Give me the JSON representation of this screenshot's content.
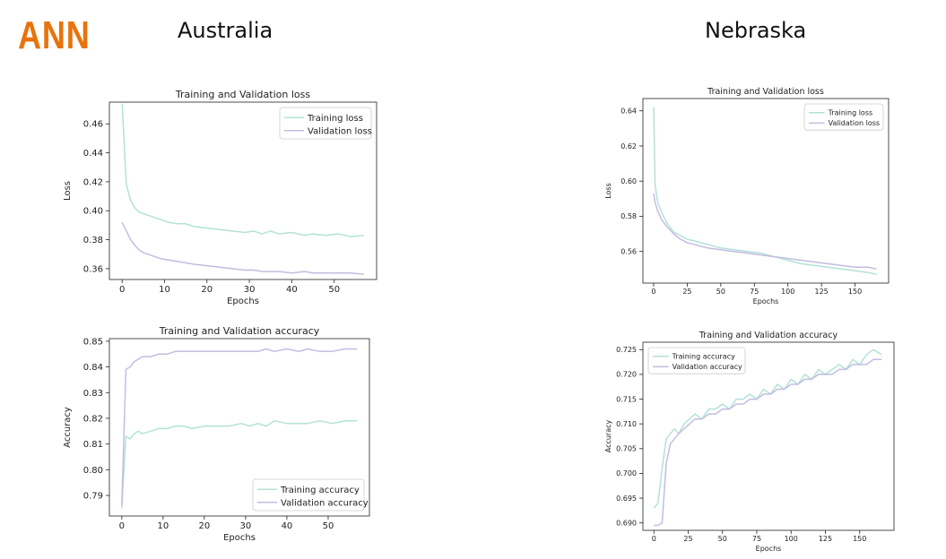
{
  "header": {
    "logo": "ANN",
    "left_title": "Australia",
    "right_title": "Nebraska"
  },
  "colors": {
    "logo": "#e8730c",
    "training": "#b3e2d8",
    "validation": "#c3bde0"
  },
  "chart_data": [
    {
      "id": "aus_loss",
      "type": "line",
      "title": "Training and Validation loss",
      "xlabel": "Epochs",
      "ylabel": "Loss",
      "xlim": [
        -3,
        60
      ],
      "ylim": [
        0.3525,
        0.475
      ],
      "xticks": [
        0,
        10,
        20,
        30,
        40,
        50
      ],
      "yticks": [
        0.36,
        0.38,
        0.4,
        0.42,
        0.44,
        0.46
      ],
      "ytick_decimals": 2,
      "legend": "top-right",
      "series": [
        {
          "name": "Training loss",
          "color": "#b3e2d8",
          "x": [
            0,
            1,
            2,
            3,
            4,
            5,
            7,
            9,
            11,
            13,
            15,
            17,
            20,
            23,
            26,
            29,
            31,
            33,
            35,
            37,
            40,
            43,
            45,
            48,
            51,
            54,
            57
          ],
          "y": [
            0.474,
            0.418,
            0.407,
            0.402,
            0.399,
            0.398,
            0.396,
            0.394,
            0.392,
            0.391,
            0.391,
            0.389,
            0.388,
            0.387,
            0.386,
            0.385,
            0.386,
            0.384,
            0.386,
            0.384,
            0.385,
            0.383,
            0.384,
            0.383,
            0.384,
            0.382,
            0.383
          ]
        },
        {
          "name": "Validation loss",
          "color": "#c3bde0",
          "x": [
            0,
            1,
            2,
            3,
            4,
            5,
            7,
            9,
            11,
            13,
            15,
            17,
            20,
            23,
            26,
            29,
            31,
            33,
            35,
            37,
            40,
            43,
            45,
            48,
            51,
            54,
            57
          ],
          "y": [
            0.392,
            0.386,
            0.38,
            0.376,
            0.373,
            0.371,
            0.369,
            0.367,
            0.366,
            0.365,
            0.364,
            0.363,
            0.362,
            0.361,
            0.36,
            0.359,
            0.359,
            0.358,
            0.358,
            0.358,
            0.357,
            0.358,
            0.357,
            0.357,
            0.357,
            0.357,
            0.356
          ]
        }
      ]
    },
    {
      "id": "aus_acc",
      "type": "line",
      "title": "Training and Validation accuracy",
      "xlabel": "Epochs",
      "ylabel": "Accuracy",
      "xlim": [
        -3,
        60
      ],
      "ylim": [
        0.782,
        0.851
      ],
      "xticks": [
        0,
        10,
        20,
        30,
        40,
        50
      ],
      "yticks": [
        0.79,
        0.8,
        0.81,
        0.82,
        0.83,
        0.84,
        0.85
      ],
      "ytick_decimals": 2,
      "legend": "bottom-right",
      "series": [
        {
          "name": "Training accuracy",
          "color": "#b3e2d8",
          "x": [
            0,
            1,
            2,
            3,
            4,
            5,
            7,
            9,
            11,
            13,
            15,
            17,
            20,
            23,
            26,
            29,
            31,
            33,
            35,
            37,
            40,
            43,
            45,
            48,
            51,
            54,
            57
          ],
          "y": [
            0.785,
            0.813,
            0.812,
            0.814,
            0.815,
            0.814,
            0.815,
            0.816,
            0.816,
            0.817,
            0.817,
            0.816,
            0.817,
            0.817,
            0.817,
            0.818,
            0.817,
            0.818,
            0.817,
            0.819,
            0.818,
            0.818,
            0.818,
            0.819,
            0.818,
            0.819,
            0.819
          ]
        },
        {
          "name": "Validation accuracy",
          "color": "#c3bde0",
          "x": [
            0,
            1,
            2,
            3,
            4,
            5,
            7,
            9,
            11,
            13,
            15,
            17,
            20,
            23,
            26,
            29,
            31,
            33,
            35,
            37,
            40,
            43,
            45,
            48,
            51,
            54,
            57
          ],
          "y": [
            0.786,
            0.839,
            0.84,
            0.842,
            0.843,
            0.844,
            0.844,
            0.845,
            0.845,
            0.846,
            0.846,
            0.846,
            0.846,
            0.846,
            0.846,
            0.846,
            0.846,
            0.846,
            0.847,
            0.846,
            0.847,
            0.846,
            0.847,
            0.846,
            0.846,
            0.847,
            0.847
          ]
        }
      ]
    },
    {
      "id": "neb_loss",
      "type": "line",
      "title": "Training and Validation loss",
      "xlabel": "Epochs",
      "ylabel": "Loss",
      "xlim": [
        -8,
        175
      ],
      "ylim": [
        0.542,
        0.647
      ],
      "xticks": [
        0,
        25,
        50,
        75,
        100,
        125,
        150
      ],
      "yticks": [
        0.56,
        0.58,
        0.6,
        0.62,
        0.64
      ],
      "ytick_decimals": 2,
      "legend": "top-right",
      "series": [
        {
          "name": "Training loss",
          "color": "#b3e2d8",
          "x": [
            0,
            1,
            3,
            6,
            10,
            15,
            20,
            25,
            30,
            40,
            50,
            60,
            70,
            80,
            90,
            100,
            110,
            120,
            130,
            140,
            150,
            160,
            166
          ],
          "y": [
            0.642,
            0.598,
            0.588,
            0.582,
            0.576,
            0.571,
            0.569,
            0.567,
            0.566,
            0.564,
            0.562,
            0.561,
            0.56,
            0.559,
            0.557,
            0.555,
            0.553,
            0.552,
            0.551,
            0.55,
            0.549,
            0.548,
            0.547
          ]
        },
        {
          "name": "Validation loss",
          "color": "#c3bde0",
          "x": [
            0,
            1,
            3,
            6,
            10,
            15,
            20,
            25,
            30,
            40,
            50,
            60,
            70,
            80,
            90,
            100,
            110,
            120,
            130,
            140,
            150,
            160,
            166
          ],
          "y": [
            0.593,
            0.588,
            0.583,
            0.578,
            0.574,
            0.57,
            0.567,
            0.565,
            0.564,
            0.562,
            0.561,
            0.56,
            0.559,
            0.558,
            0.557,
            0.556,
            0.555,
            0.554,
            0.553,
            0.552,
            0.551,
            0.551,
            0.55
          ]
        }
      ]
    },
    {
      "id": "neb_acc",
      "type": "line",
      "title": "Training and Validation accuracy",
      "xlabel": "Epochs",
      "ylabel": "Accuracy",
      "xlim": [
        -8,
        175
      ],
      "ylim": [
        0.6885,
        0.7265
      ],
      "xticks": [
        0,
        25,
        50,
        75,
        100,
        125,
        150
      ],
      "yticks": [
        0.69,
        0.695,
        0.7,
        0.705,
        0.71,
        0.715,
        0.72,
        0.725
      ],
      "ytick_decimals": 3,
      "legend": "top-left",
      "series": [
        {
          "name": "Training accuracy",
          "color": "#b3e2d8",
          "x": [
            0,
            3,
            6,
            9,
            12,
            15,
            18,
            22,
            26,
            30,
            35,
            40,
            45,
            50,
            55,
            60,
            65,
            70,
            75,
            80,
            85,
            90,
            95,
            100,
            105,
            110,
            115,
            120,
            125,
            130,
            135,
            140,
            145,
            150,
            155,
            160,
            166
          ],
          "y": [
            0.693,
            0.694,
            0.701,
            0.707,
            0.708,
            0.709,
            0.708,
            0.71,
            0.711,
            0.712,
            0.711,
            0.713,
            0.713,
            0.714,
            0.713,
            0.715,
            0.715,
            0.716,
            0.715,
            0.717,
            0.716,
            0.718,
            0.717,
            0.719,
            0.718,
            0.72,
            0.719,
            0.721,
            0.72,
            0.721,
            0.722,
            0.721,
            0.723,
            0.722,
            0.724,
            0.725,
            0.724
          ]
        },
        {
          "name": "Validation accuracy",
          "color": "#c3bde0",
          "x": [
            0,
            3,
            6,
            9,
            12,
            15,
            18,
            22,
            26,
            30,
            35,
            40,
            45,
            50,
            55,
            60,
            65,
            70,
            75,
            80,
            85,
            90,
            95,
            100,
            105,
            110,
            115,
            120,
            125,
            130,
            135,
            140,
            145,
            150,
            155,
            160,
            166
          ],
          "y": [
            0.6895,
            0.6895,
            0.69,
            0.702,
            0.706,
            0.707,
            0.708,
            0.709,
            0.71,
            0.711,
            0.711,
            0.712,
            0.712,
            0.713,
            0.713,
            0.714,
            0.714,
            0.715,
            0.715,
            0.716,
            0.716,
            0.717,
            0.717,
            0.718,
            0.718,
            0.719,
            0.719,
            0.72,
            0.72,
            0.72,
            0.721,
            0.721,
            0.722,
            0.722,
            0.722,
            0.723,
            0.723
          ]
        }
      ]
    }
  ]
}
